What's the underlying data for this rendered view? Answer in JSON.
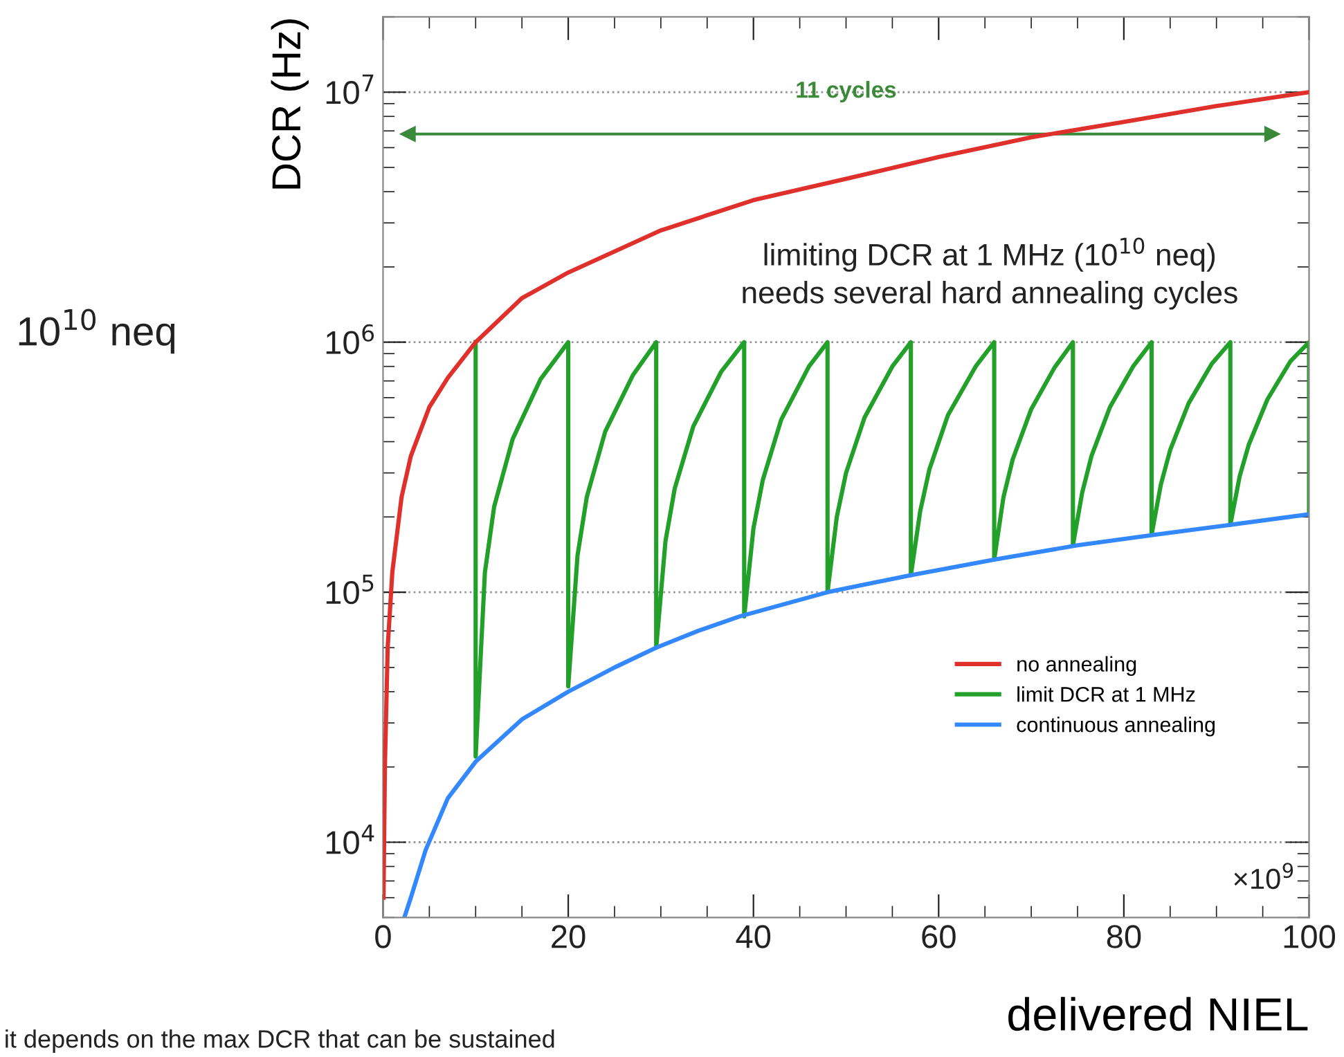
{
  "chart_data": {
    "type": "line",
    "xlabel": "delivered NIEL",
    "ylabel": "DCR (Hz)",
    "log": "y",
    "xlim": [
      0,
      100
    ],
    "xticks": [
      0,
      20,
      40,
      60,
      80,
      100
    ],
    "ylim": [
      5000,
      20000000
    ],
    "yticks": [
      {
        "value": 10000,
        "label": "10$^{4}$"
      },
      {
        "value": 100000,
        "label": "10$^{5}$"
      },
      {
        "value": 1000000,
        "label": "10$^{6}$"
      },
      {
        "value": 10000000,
        "label": "10$^{7}$"
      }
    ],
    "grid": "y",
    "legend": "bottom right",
    "line_style": "solid",
    "marker": "none",
    "series": [
      {
        "name": "no annealing",
        "color": "#e0302c",
        "x": [
          0.05,
          0.2,
          0.5,
          1,
          2,
          3,
          5,
          7,
          10,
          15,
          20,
          30,
          40,
          50,
          60,
          70,
          80,
          90,
          100
        ],
        "values": [
          6000,
          20000,
          60000,
          120000,
          240000,
          350000,
          550000,
          720000,
          1000000,
          1500000,
          1900000,
          2800000,
          3700000,
          4500000,
          5500000,
          6600000,
          7600000,
          8800000,
          10000000
        ]
      },
      {
        "name": "limit DCR at 1 MHz",
        "color": "#22a02a",
        "x": [
          10,
          10,
          11,
          12,
          14,
          17,
          20,
          20,
          21,
          22,
          24,
          27,
          29.5,
          29.5,
          30.5,
          31.5,
          33.5,
          36.5,
          39,
          39,
          40,
          41,
          43,
          46,
          48,
          48,
          49,
          50,
          52,
          55,
          57,
          57,
          58,
          59,
          61,
          64,
          66,
          66,
          67,
          68,
          70,
          72.5,
          74.5,
          74.5,
          75.5,
          76.5,
          78.5,
          81,
          83,
          83,
          84,
          85,
          87,
          89.5,
          91.5,
          91.5,
          92.5,
          93.5,
          95.5,
          98,
          100,
          100
        ],
        "values": [
          1000000,
          22000,
          120000,
          220000,
          410000,
          710000,
          1000000,
          42000,
          140000,
          240000,
          440000,
          740000,
          1000000,
          60000,
          160000,
          260000,
          460000,
          760000,
          1000000,
          80000,
          180000,
          280000,
          490000,
          800000,
          1000000,
          100000,
          200000,
          300000,
          500000,
          800000,
          1000000,
          117000,
          210000,
          310000,
          510000,
          800000,
          1000000,
          135000,
          240000,
          340000,
          540000,
          790000,
          1000000,
          154000,
          250000,
          350000,
          550000,
          800000,
          1000000,
          170000,
          270000,
          370000,
          570000,
          820000,
          1000000,
          186000,
          290000,
          390000,
          590000,
          840000,
          1000000,
          205000
        ]
      },
      {
        "name": "continuous annealing",
        "color": "#3388ff",
        "x": [
          2.3,
          3,
          4.6,
          7,
          10,
          15,
          20,
          25,
          29.5,
          34,
          38.5,
          48,
          57,
          66,
          75,
          83.5,
          91.5,
          100
        ],
        "values": [
          5000,
          6000,
          9300,
          15000,
          21000,
          31000,
          40000,
          50000,
          60000,
          70000,
          80000,
          100000,
          117000,
          135000,
          154000,
          170000,
          186000,
          205000
        ]
      },
      {
        "color": "#3a8a3a",
        "marker": "triangle",
        "x": [
          2.7,
          96
        ],
        "values": [
          6800000,
          6800000
        ]
      }
    ],
    "annotations": [
      "11 cycles",
      "limiting DCR at 1 MHz (10$^{10}$ neq)\nneeds several hard annealing cycles",
      "×10$^{9}$",
      "10$^{10}$ neq",
      "it depends on the max DCR that can be sustained"
    ]
  }
}
